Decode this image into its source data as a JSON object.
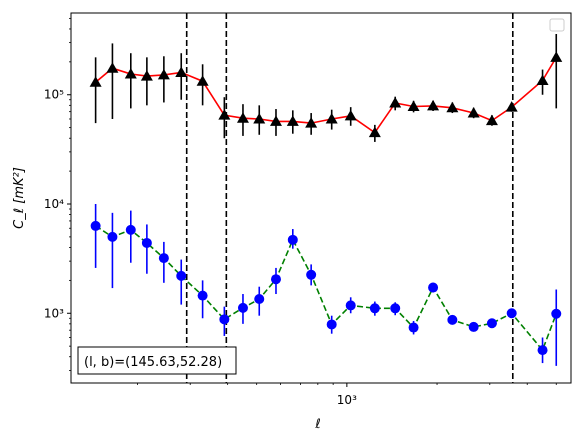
{
  "chart_data": {
    "type": "scatter",
    "xscale": "log",
    "yscale": "log",
    "xlim": [
      120,
      5600
    ],
    "ylim": [
      230,
      560000
    ],
    "xlabel": "ℓ",
    "ylabel": "C_ℓ [mK²]",
    "x_ticks": [
      {
        "value": 1000,
        "label": "10³"
      }
    ],
    "y_ticks": [
      {
        "value": 1000,
        "label": "10³"
      },
      {
        "value": 10000,
        "label": "10⁴"
      },
      {
        "value": 100000,
        "label": "10⁵"
      }
    ],
    "legend": "top-right (empty)",
    "annotation": "(l, b)=(145.63,52.28)",
    "vlines": [
      292,
      396,
      3580
    ],
    "series": [
      {
        "color": "#000000",
        "line_color": "#ff0000",
        "linestyle": "solid",
        "marker": "triangle",
        "points": [
          {
            "x": 145,
            "y": 130000,
            "lo": 55000,
            "hi": 220000
          },
          {
            "x": 165,
            "y": 175000,
            "lo": 60000,
            "hi": 295000
          },
          {
            "x": 190,
            "y": 155000,
            "lo": 75000,
            "hi": 240000
          },
          {
            "x": 215,
            "y": 148000,
            "lo": 80000,
            "hi": 220000
          },
          {
            "x": 245,
            "y": 152000,
            "lo": 85000,
            "hi": 225000
          },
          {
            "x": 280,
            "y": 160000,
            "lo": 90000,
            "hi": 240000
          },
          {
            "x": 330,
            "y": 133000,
            "lo": 80000,
            "hi": 190000
          },
          {
            "x": 390,
            "y": 65000,
            "lo": 40000,
            "hi": 95000
          },
          {
            "x": 450,
            "y": 61000,
            "lo": 42000,
            "hi": 82000
          },
          {
            "x": 510,
            "y": 60000,
            "lo": 43000,
            "hi": 80000
          },
          {
            "x": 580,
            "y": 57000,
            "lo": 42000,
            "hi": 74000
          },
          {
            "x": 660,
            "y": 57000,
            "lo": 44000,
            "hi": 72000
          },
          {
            "x": 760,
            "y": 55000,
            "lo": 43000,
            "hi": 68000
          },
          {
            "x": 890,
            "y": 60000,
            "lo": 48000,
            "hi": 73000
          },
          {
            "x": 1030,
            "y": 64000,
            "lo": 52000,
            "hi": 77000
          },
          {
            "x": 1240,
            "y": 45000,
            "lo": 37000,
            "hi": 53000
          },
          {
            "x": 1450,
            "y": 84000,
            "lo": 72000,
            "hi": 96000
          },
          {
            "x": 1670,
            "y": 78000,
            "lo": 69000,
            "hi": 88000
          },
          {
            "x": 1940,
            "y": 79000,
            "lo": 71000,
            "hi": 88000
          },
          {
            "x": 2250,
            "y": 76000,
            "lo": 68000,
            "hi": 85000
          },
          {
            "x": 2650,
            "y": 68000,
            "lo": 61000,
            "hi": 76000
          },
          {
            "x": 3050,
            "y": 58000,
            "lo": 52000,
            "hi": 65000
          },
          {
            "x": 3550,
            "y": 77000,
            "lo": 70000,
            "hi": 85000
          },
          {
            "x": 4500,
            "y": 135000,
            "lo": 100000,
            "hi": 170000
          },
          {
            "x": 5000,
            "y": 220000,
            "lo": 75000,
            "hi": 360000
          }
        ]
      },
      {
        "color": "#0000ff",
        "line_color": "#008000",
        "linestyle": "dashed",
        "marker": "circle",
        "points": [
          {
            "x": 145,
            "y": 6300,
            "lo": 2600,
            "hi": 10000
          },
          {
            "x": 165,
            "y": 5000,
            "lo": 1700,
            "hi": 8300
          },
          {
            "x": 190,
            "y": 5800,
            "lo": 2900,
            "hi": 8700
          },
          {
            "x": 215,
            "y": 4400,
            "lo": 2300,
            "hi": 6500
          },
          {
            "x": 245,
            "y": 3200,
            "lo": 1900,
            "hi": 4500
          },
          {
            "x": 280,
            "y": 2200,
            "lo": 1200,
            "hi": 3100
          },
          {
            "x": 330,
            "y": 1450,
            "lo": 900,
            "hi": 2000
          },
          {
            "x": 390,
            "y": 880,
            "lo": 620,
            "hi": 1150
          },
          {
            "x": 450,
            "y": 1120,
            "lo": 800,
            "hi": 1500
          },
          {
            "x": 510,
            "y": 1350,
            "lo": 950,
            "hi": 1750
          },
          {
            "x": 580,
            "y": 2050,
            "lo": 1500,
            "hi": 2600
          },
          {
            "x": 660,
            "y": 4700,
            "lo": 3900,
            "hi": 5900
          },
          {
            "x": 760,
            "y": 2250,
            "lo": 1800,
            "hi": 2800
          },
          {
            "x": 890,
            "y": 790,
            "lo": 650,
            "hi": 950
          },
          {
            "x": 1030,
            "y": 1180,
            "lo": 1000,
            "hi": 1400
          },
          {
            "x": 1240,
            "y": 1110,
            "lo": 950,
            "hi": 1280
          },
          {
            "x": 1450,
            "y": 1110,
            "lo": 960,
            "hi": 1260
          },
          {
            "x": 1670,
            "y": 740,
            "lo": 640,
            "hi": 850
          },
          {
            "x": 1940,
            "y": 1720,
            "lo": 1550,
            "hi": 1900
          },
          {
            "x": 2250,
            "y": 870,
            "lo": 790,
            "hi": 960
          },
          {
            "x": 2650,
            "y": 750,
            "lo": 690,
            "hi": 820
          },
          {
            "x": 3050,
            "y": 810,
            "lo": 740,
            "hi": 880
          },
          {
            "x": 3550,
            "y": 1000,
            "lo": 920,
            "hi": 1090
          },
          {
            "x": 4500,
            "y": 460,
            "lo": 350,
            "hi": 600
          },
          {
            "x": 5000,
            "y": 990,
            "lo": 330,
            "hi": 1650
          }
        ]
      }
    ]
  }
}
